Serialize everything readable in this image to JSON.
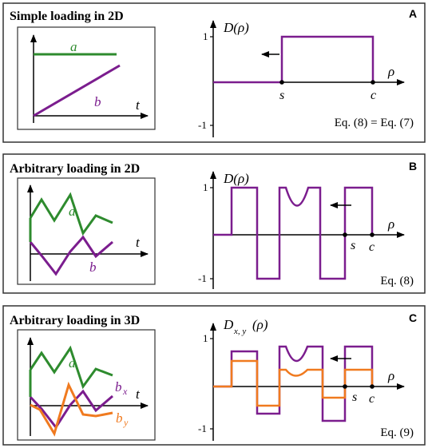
{
  "colors": {
    "green": "#2e8b2e",
    "purple": "#7b1d8e",
    "orange": "#f07a1f",
    "frame": "#333333"
  },
  "panels": [
    {
      "id": "A",
      "title": "Simple loading in 2D",
      "label": "A",
      "y_axis_label": "D(ρ)",
      "x_axis_label": "ρ",
      "tick_pos": "1",
      "tick_neg": "-1",
      "marker_s": "s",
      "marker_c": "c",
      "equation": "Eq. (8) = Eq. (7)",
      "inset": {
        "label_a": "a",
        "label_b": "b",
        "axis_t": "t"
      }
    },
    {
      "id": "B",
      "title": "Arbitrary loading in 2D",
      "label": "B",
      "y_axis_label": "D(ρ)",
      "x_axis_label": "ρ",
      "tick_pos": "1",
      "tick_neg": "-1",
      "marker_s": "s",
      "marker_c": "c",
      "equation": "Eq. (8)",
      "inset": {
        "label_a": "a",
        "label_b": "b",
        "axis_t": "t"
      }
    },
    {
      "id": "C",
      "title": "Arbitrary loading in 3D",
      "label": "C",
      "y_axis_label_main": "D",
      "y_axis_label_sub": "x, y",
      "y_axis_label_arg": "(ρ)",
      "x_axis_label": "ρ",
      "tick_pos": "1",
      "tick_neg": "-1",
      "marker_s": "s",
      "marker_c": "c",
      "equation": "Eq. (9)",
      "inset": {
        "label_a": "a",
        "label_bx_main": "b",
        "label_bx_sub": "x",
        "label_by_main": "b",
        "label_by_sub": "y",
        "axis_t": "t"
      }
    }
  ]
}
